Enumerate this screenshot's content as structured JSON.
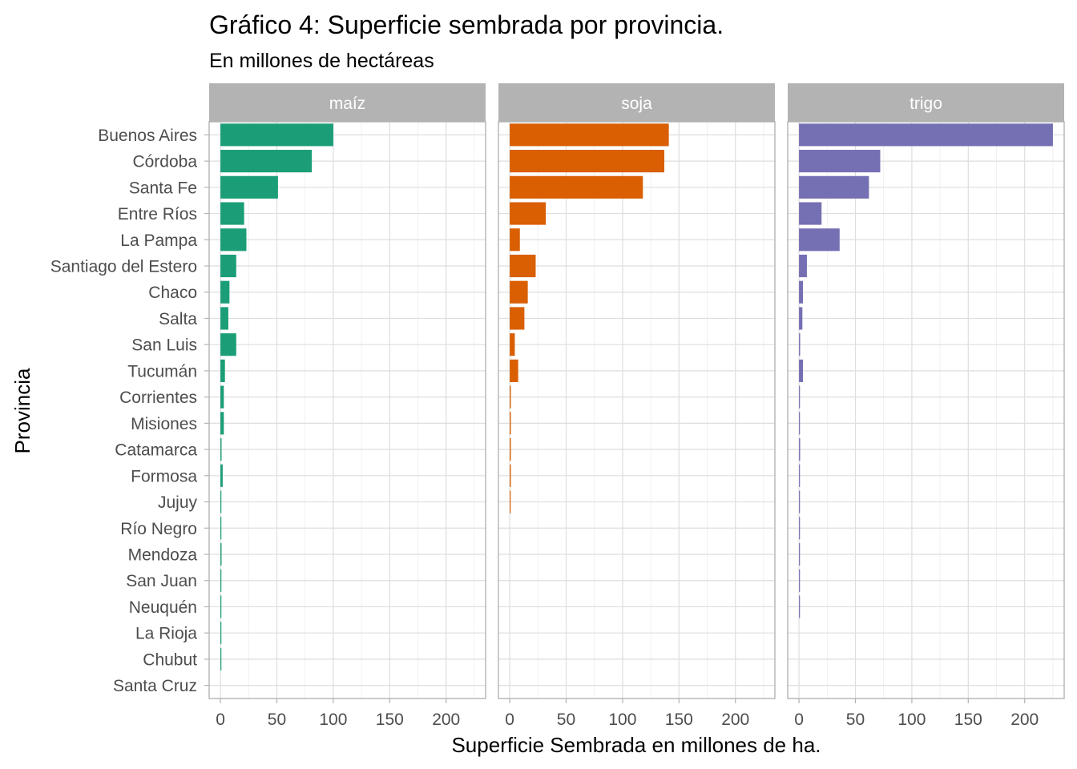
{
  "chart_data": {
    "type": "bar",
    "orientation": "horizontal",
    "title": "Gráfico 4: Superficie sembrada por provincia.",
    "subtitle": "En millones de hectáreas",
    "xlabel": "Superficie Sembrada en millones de ha.",
    "ylabel": "Provincia",
    "xlim": [
      -10,
      235
    ],
    "x_ticks": [
      0,
      50,
      100,
      150,
      200
    ],
    "grid": true,
    "legend": "none",
    "categories": [
      "Buenos Aires",
      "Córdoba",
      "Santa Fe",
      "Entre Ríos",
      "La Pampa",
      "Santiago del Estero",
      "Chaco",
      "Salta",
      "San Luis",
      "Tucumán",
      "Corrientes",
      "Misiones",
      "Catamarca",
      "Formosa",
      "Jujuy",
      "Río Negro",
      "Mendoza",
      "San Juan",
      "Neuquén",
      "La Rioja",
      "Chubut",
      "Santa Cruz"
    ],
    "series": [
      {
        "name": "maíz",
        "color": "#1b9e77",
        "values": [
          100,
          81,
          51,
          21,
          23,
          14,
          8,
          7,
          14,
          4,
          3,
          3,
          1,
          2,
          0.8,
          0.2,
          1,
          0.2,
          0.1,
          0.1,
          0.05,
          0
        ]
      },
      {
        "name": "soja",
        "color": "#d95f02",
        "values": [
          141,
          137,
          118,
          32,
          9,
          23,
          16,
          13,
          4.5,
          7.5,
          1,
          1,
          1,
          1,
          0.3,
          0,
          0,
          0,
          0,
          0,
          0,
          0
        ]
      },
      {
        "name": "trigo",
        "color": "#7570b3",
        "values": [
          225,
          72,
          62,
          20,
          36,
          7,
          3.5,
          3,
          1,
          3.5,
          0.2,
          0.3,
          1,
          0.3,
          0.2,
          0.2,
          0.1,
          0.1,
          0.1,
          0,
          0,
          0
        ]
      }
    ]
  }
}
